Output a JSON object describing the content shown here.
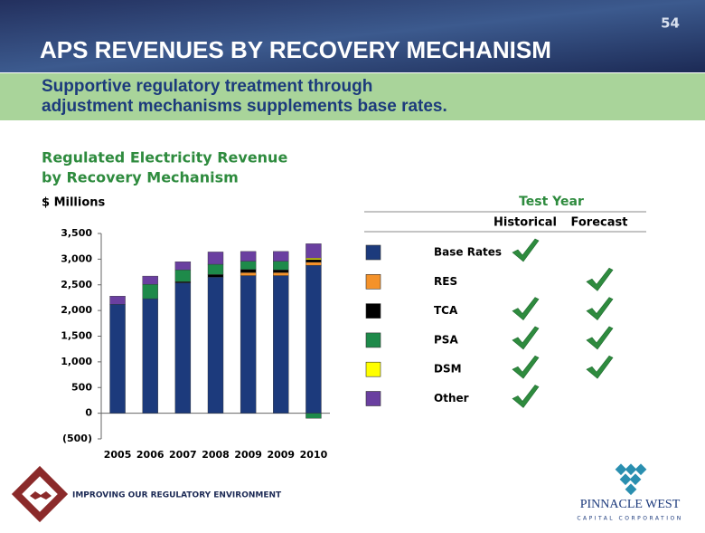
{
  "page_number": "54",
  "title": "APS REVENUES BY RECOVERY MECHANISM",
  "subtitle": [
    "Supportive regulatory treatment through",
    "adjustment mechanisms supplements base rates."
  ],
  "footer": "IMPROVING OUR REGULATORY ENVIRONMENT",
  "logo": {
    "name": "PINNACLE WEST",
    "tagline": "CAPITAL CORPORATION"
  },
  "chart_data": {
    "type": "stacked-bar",
    "title": [
      "Regulated Electricity Revenue",
      "by Recovery Mechanism"
    ],
    "y_label": "$ Millions",
    "categories": [
      "2005",
      "2006",
      "2007",
      "2008",
      "2009",
      "2009",
      "2010"
    ],
    "series": [
      {
        "name": "Base Rates",
        "color": "#1c3a7c",
        "values": [
          2120,
          2230,
          2540,
          2650,
          2680,
          2680,
          2880
        ]
      },
      {
        "name": "RES",
        "color": "#f4922a",
        "values": [
          0,
          0,
          0,
          0,
          60,
          60,
          60
        ]
      },
      {
        "name": "TCA",
        "color": "#000000",
        "values": [
          0,
          0,
          20,
          50,
          60,
          50,
          50
        ]
      },
      {
        "name": "PSA",
        "color": "#1e8a4a",
        "values": [
          0,
          280,
          230,
          200,
          160,
          170,
          -100
        ]
      },
      {
        "name": "DSM",
        "color": "#ffff00",
        "values": [
          0,
          0,
          0,
          0,
          0,
          0,
          30
        ]
      },
      {
        "name": "Other",
        "color": "#6a3fa0",
        "values": [
          160,
          160,
          160,
          240,
          190,
          190,
          280
        ]
      }
    ],
    "ylim": [
      -500,
      3500
    ],
    "yticks": [
      {
        "value": -500,
        "label": "(500)"
      },
      0,
      500,
      {
        "value": 1000,
        "label": "1,000"
      },
      {
        "value": 1500,
        "label": "1,500"
      },
      {
        "value": 2000,
        "label": "2,000"
      },
      {
        "value": 2500,
        "label": "2,500"
      },
      {
        "value": 3000,
        "label": "3,000"
      },
      {
        "value": 3500,
        "label": "3,500"
      }
    ],
    "grid": false
  },
  "legend_table": {
    "title": "Test Year",
    "columns": [
      "Historical",
      "Forecast"
    ],
    "checks": [
      [
        true,
        false
      ],
      [
        false,
        true
      ],
      [
        true,
        true
      ],
      [
        true,
        true
      ],
      [
        true,
        true
      ],
      [
        true,
        false
      ]
    ]
  }
}
